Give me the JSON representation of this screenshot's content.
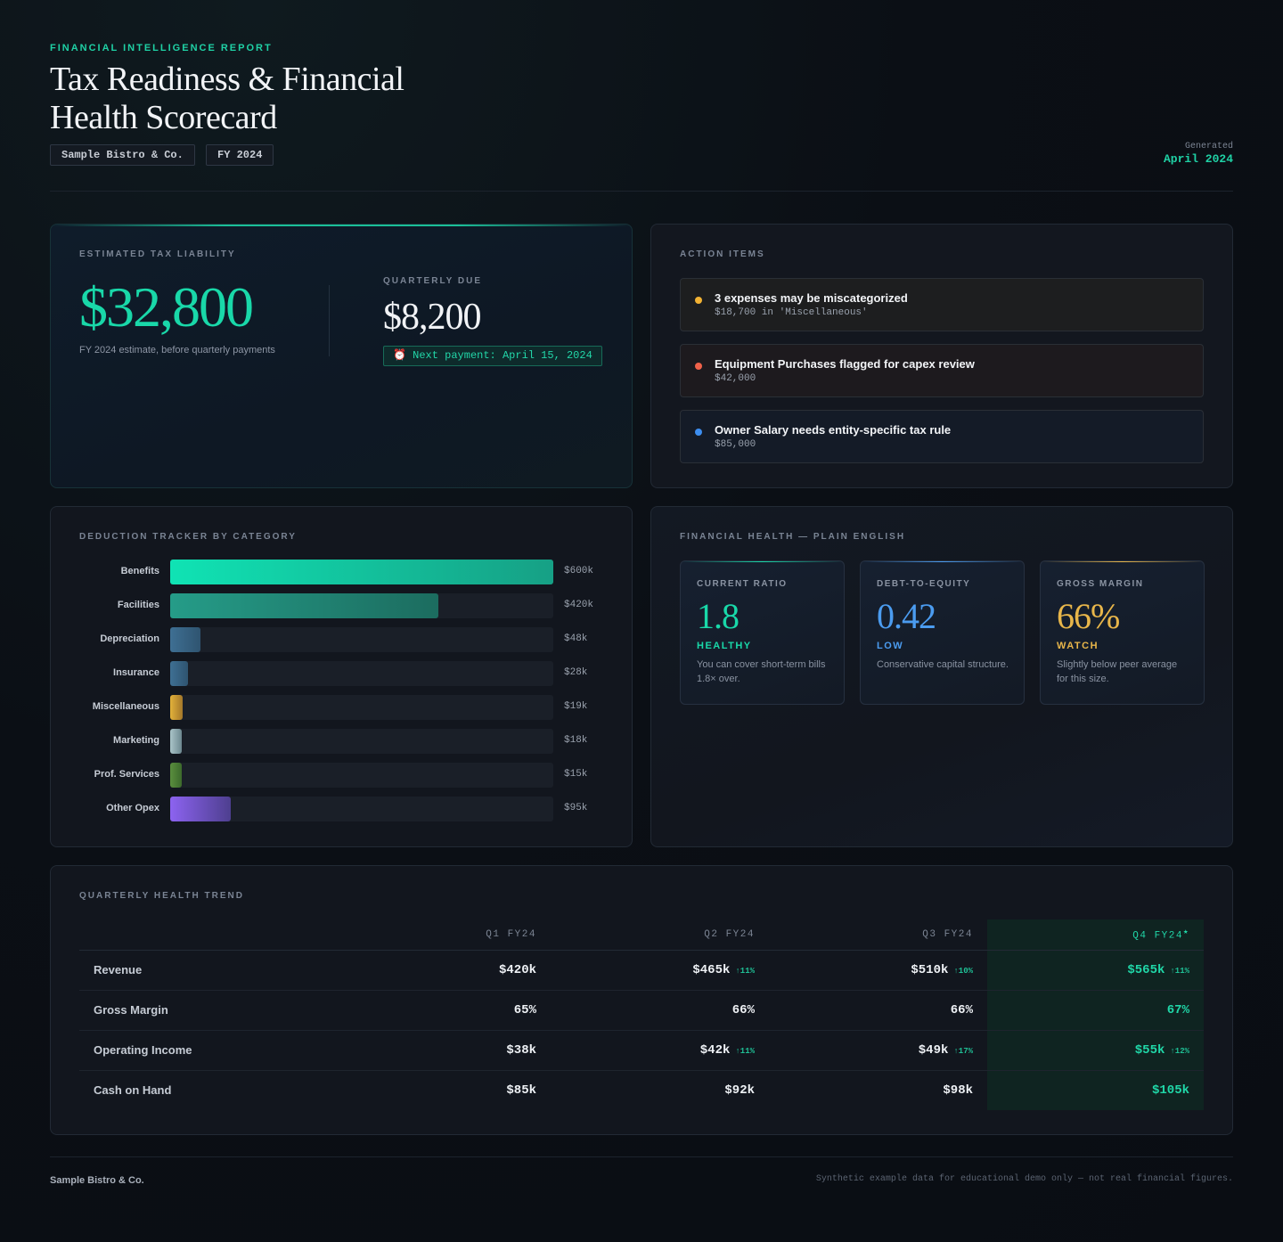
{
  "header": {
    "eyebrow": "FINANCIAL INTELLIGENCE REPORT",
    "title": "Tax Readiness & Financial Health Scorecard",
    "company": "Sample Bistro & Co.",
    "fiscal_year": "FY 2024",
    "generated_label": "Generated",
    "generated_value": "April 2024"
  },
  "tax": {
    "title": "ESTIMATED TAX LIABILITY",
    "amount": "$32,800",
    "subtitle": "FY 2024 estimate, before quarterly payments",
    "quarterly_label": "QUARTERLY DUE",
    "quarterly_amount": "$8,200",
    "next_payment": "⏰ Next payment: April 15, 2024",
    "colors": {
      "accent": "#19d8a9"
    }
  },
  "actions": {
    "title": "ACTION ITEMS",
    "items": [
      {
        "title": "3 expenses may be miscategorized",
        "detail": "$18,700 in 'Miscellaneous'",
        "color": "#f2b233",
        "bg": "#1d1e1f"
      },
      {
        "title": "Equipment Purchases flagged for capex review",
        "detail": "$42,000",
        "color": "#f0624a",
        "bg": "#1d1a1e"
      },
      {
        "title": "Owner Salary needs entity-specific tax rule",
        "detail": "$85,000",
        "color": "#3d8ef0",
        "bg": "#141b27"
      }
    ]
  },
  "deductions": {
    "title": "DEDUCTION TRACKER BY CATEGORY",
    "max": 600,
    "items": [
      {
        "label": "Benefits",
        "value": 600,
        "display": "$600k",
        "color_from": "#10e3b4",
        "color_to": "#16a085"
      },
      {
        "label": "Facilities",
        "value": 420,
        "display": "$420k",
        "color_from": "#259c88",
        "color_to": "#1c6c5f"
      },
      {
        "label": "Depreciation",
        "value": 48,
        "display": "$48k",
        "color_from": "#3e6f93",
        "color_to": "#2f5470"
      },
      {
        "label": "Insurance",
        "value": 28,
        "display": "$28k",
        "color_from": "#3e6f93",
        "color_to": "#2f5470"
      },
      {
        "label": "Miscellaneous",
        "value": 19,
        "display": "$19k",
        "color_from": "#e2b13a",
        "color_to": "#a4782a"
      },
      {
        "label": "Marketing",
        "value": 18,
        "display": "$18k",
        "color_from": "#a9c4c8",
        "color_to": "#6d8890"
      },
      {
        "label": "Prof. Services",
        "value": 15,
        "display": "$15k",
        "color_from": "#5a8e3e",
        "color_to": "#3c6a2c"
      },
      {
        "label": "Other Opex",
        "value": 95,
        "display": "$95k",
        "color_from": "#8c63f0",
        "color_to": "#4e3f8f"
      }
    ]
  },
  "health": {
    "title": "FINANCIAL HEALTH — PLAIN ENGLISH",
    "metrics": [
      {
        "label": "CURRENT RATIO",
        "value": "1.8",
        "status": "HEALTHY",
        "desc": "You can cover short-term bills 1.8× over.",
        "color": "#19d8a9"
      },
      {
        "label": "DEBT-TO-EQUITY",
        "value": "0.42",
        "status": "LOW",
        "desc": "Conservative capital structure.",
        "color": "#4b9cf0"
      },
      {
        "label": "GROSS MARGIN",
        "value": "66%",
        "status": "WATCH",
        "desc": "Slightly below peer average for this size.",
        "color": "#e8b64a"
      }
    ]
  },
  "trend": {
    "title": "QUARTERLY HEALTH TREND",
    "columns": [
      "Q1 FY24",
      "Q2 FY24",
      "Q3 FY24",
      "Q4 FY24"
    ],
    "q4_marker": "★",
    "rows": [
      {
        "label": "Revenue",
        "cells": [
          {
            "v": "$420k",
            "d": ""
          },
          {
            "v": "$465k",
            "d": "↑11%"
          },
          {
            "v": "$510k",
            "d": "↑10%"
          },
          {
            "v": "$565k",
            "d": "↑11%"
          }
        ]
      },
      {
        "label": "Gross Margin",
        "cells": [
          {
            "v": "65%",
            "d": ""
          },
          {
            "v": "66%",
            "d": ""
          },
          {
            "v": "66%",
            "d": ""
          },
          {
            "v": "67%",
            "d": ""
          }
        ]
      },
      {
        "label": "Operating Income",
        "cells": [
          {
            "v": "$38k",
            "d": ""
          },
          {
            "v": "$42k",
            "d": "↑11%"
          },
          {
            "v": "$49k",
            "d": "↑17%"
          },
          {
            "v": "$55k",
            "d": "↑12%"
          }
        ]
      },
      {
        "label": "Cash on Hand",
        "cells": [
          {
            "v": "$85k",
            "d": ""
          },
          {
            "v": "$92k",
            "d": ""
          },
          {
            "v": "$98k",
            "d": ""
          },
          {
            "v": "$105k",
            "d": ""
          }
        ]
      }
    ]
  },
  "footer": {
    "company": "Sample Bistro & Co.",
    "disclaimer": "Synthetic example data for educational demo only — not real financial figures."
  }
}
